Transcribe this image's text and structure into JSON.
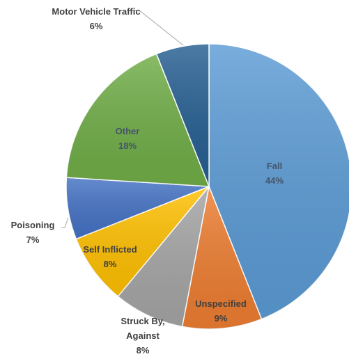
{
  "chart_data": {
    "type": "pie",
    "categories": [
      "Fall",
      "Unspecified",
      "Struck By, Against",
      "Self Inflicted",
      "Poisoning",
      "Other",
      "Motor Vehicle Traffic"
    ],
    "values": [
      44,
      9,
      8,
      8,
      7,
      18,
      6
    ],
    "value_labels": [
      "44%",
      "9%",
      "8%",
      "8%",
      "7%",
      "18%",
      "6%"
    ],
    "colors": [
      "#5b9bd5",
      "#ed7d31",
      "#a5a5a5",
      "#ffc000",
      "#4472c4",
      "#70ad47",
      "#255e91"
    ]
  }
}
